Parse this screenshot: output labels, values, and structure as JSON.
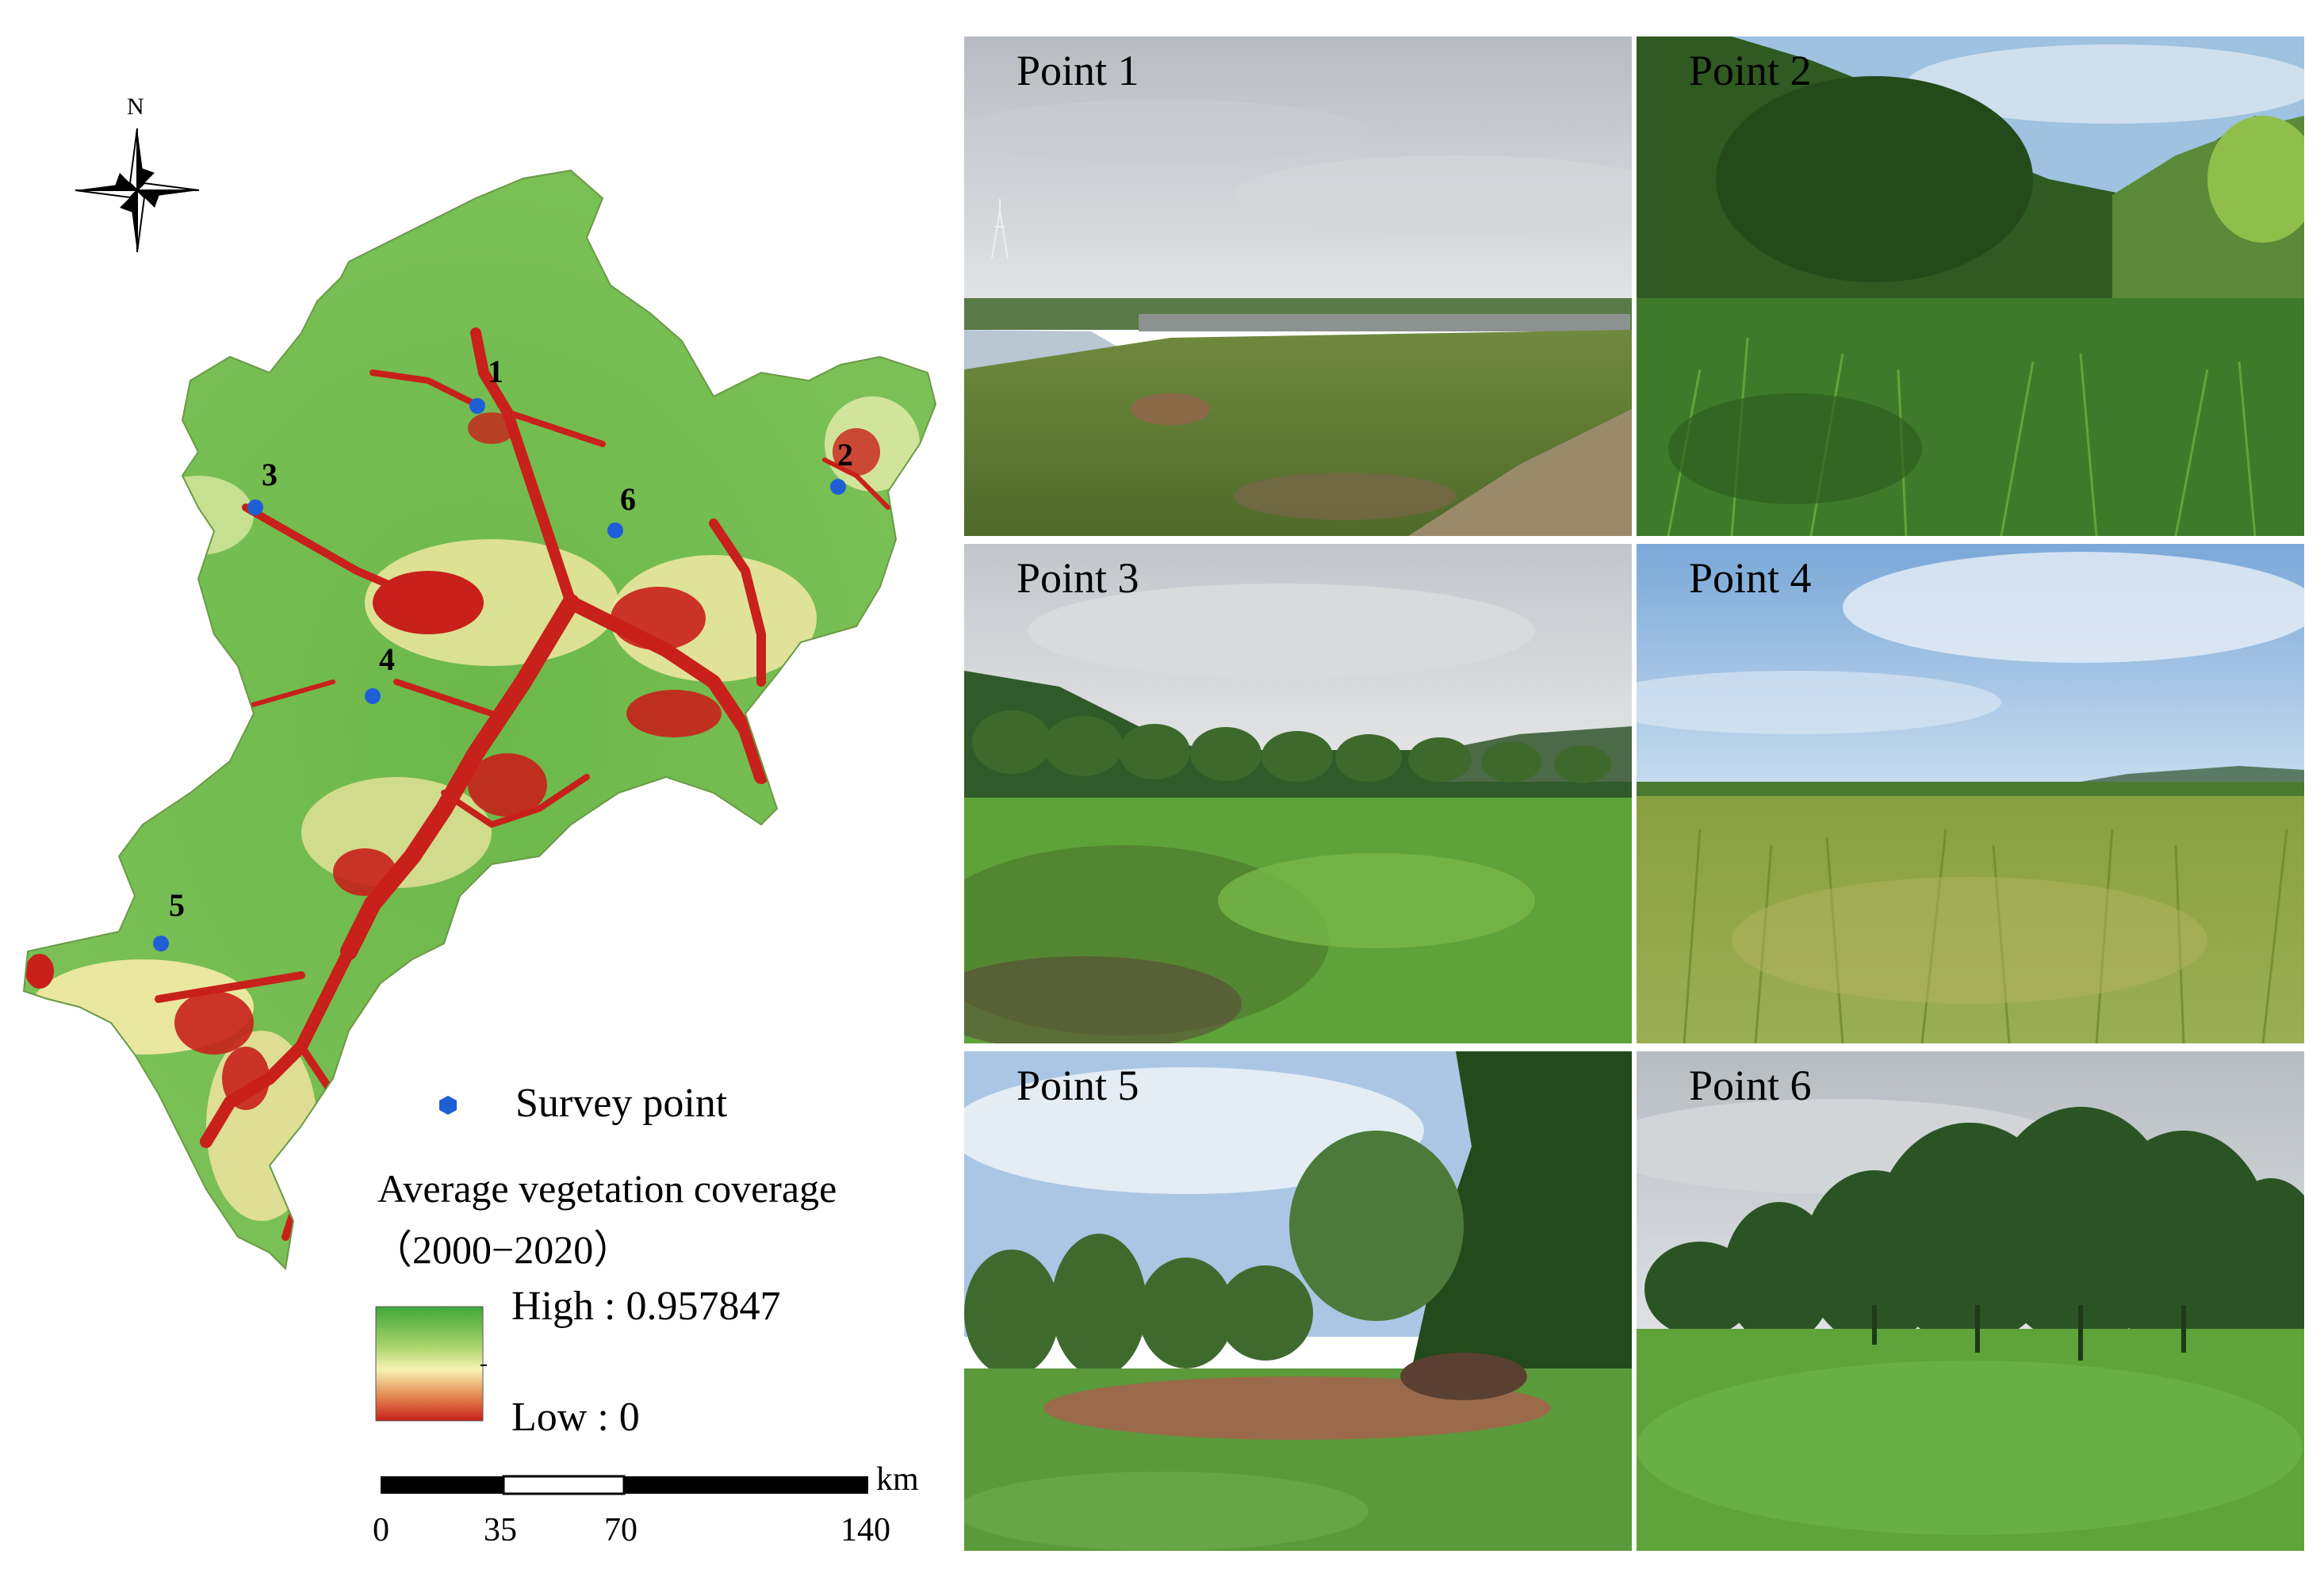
{
  "map": {
    "north_label": "N",
    "legend": {
      "survey_point_label": "Survey point",
      "coverage_title": "Average vegetation coverage",
      "coverage_period": "（2000−2020）",
      "high_label": "High : 0.957847",
      "low_label": "Low : 0",
      "colors": {
        "high": "#3fa63a",
        "mid": "#f7f3b4",
        "low": "#c8201a"
      }
    },
    "scale_bar": {
      "unit": "km",
      "ticks": [
        "0",
        "35",
        "70",
        "140"
      ]
    },
    "survey_point_color": "#1f5fd6",
    "survey_points": [
      {
        "id": "1",
        "label": "1"
      },
      {
        "id": "2",
        "label": "2"
      },
      {
        "id": "3",
        "label": "3"
      },
      {
        "id": "4",
        "label": "4"
      },
      {
        "id": "5",
        "label": "5"
      },
      {
        "id": "6",
        "label": "6"
      }
    ]
  },
  "photos": [
    {
      "label": "Point 1",
      "scene": "reservoir-bank"
    },
    {
      "label": "Point 2",
      "scene": "shrub-thicket"
    },
    {
      "label": "Point 3",
      "scene": "meadow-tree-line"
    },
    {
      "label": "Point 4",
      "scene": "tall-grass-field"
    },
    {
      "label": "Point 5",
      "scene": "forest-clearing"
    },
    {
      "label": "Point 6",
      "scene": "savanna-trees"
    }
  ]
}
